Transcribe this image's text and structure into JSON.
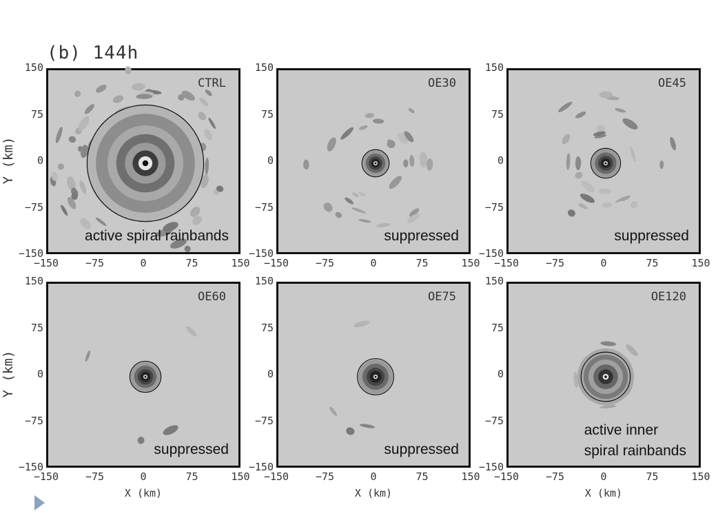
{
  "figure": {
    "title": "(b) 144h",
    "ylabel": "Y (km)",
    "xlabel": "X (km)",
    "ticks": [
      "150",
      "75",
      "0",
      "−75",
      "−150"
    ],
    "xticks": [
      "−150",
      "−75",
      "0",
      "75",
      "150"
    ]
  },
  "panels": [
    {
      "run": "CTRL",
      "annotation": [
        "active spiral rainbands"
      ],
      "spiral": "wide",
      "contour_radius_km": 90
    },
    {
      "run": "OE30",
      "annotation": [
        "suppressed"
      ],
      "spiral": "weak",
      "contour_radius_km": 21
    },
    {
      "run": "OE45",
      "annotation": [
        "suppressed"
      ],
      "spiral": "weak",
      "contour_radius_km": 23
    },
    {
      "run": "OE60",
      "annotation": [
        "suppressed"
      ],
      "spiral": "none",
      "contour_radius_km": 24
    },
    {
      "run": "OE75",
      "annotation": [
        "suppressed"
      ],
      "spiral": "none",
      "contour_radius_km": 28
    },
    {
      "run": "OE120",
      "annotation": [
        "active inner",
        "spiral rainbands"
      ],
      "spiral": "inner",
      "contour_radius_km": 38
    }
  ],
  "colors": {
    "plot_bg": "#c9c9c9",
    "frame": "#111111",
    "nav_arrow": "#8aa3bf"
  },
  "nav_icon": "triangle-right-icon"
}
